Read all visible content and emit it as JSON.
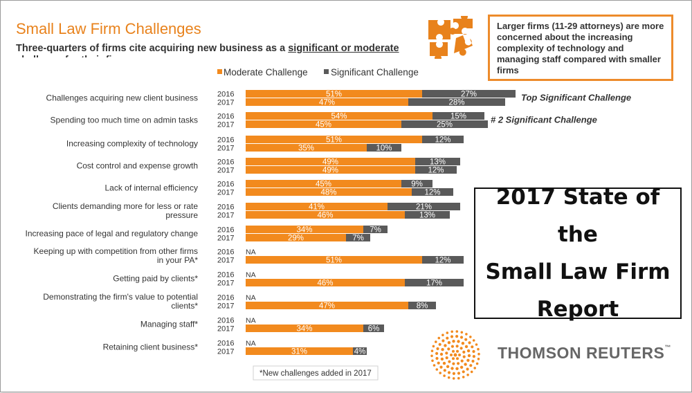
{
  "title": "Small Law Firm Challenges",
  "subtitle": {
    "part1": "Three-quarters of firms cite acquiring new business as a ",
    "underlined": "significant or moderate challenge ",
    "part2": "for their firm."
  },
  "callout": "Larger firms (11-29 attorneys) are more concerned about the increasing complexity of technology and managing staff compared with smaller firms",
  "report_title_lines": [
    "2017 State of the",
    "Small Law Firm",
    "Report"
  ],
  "brand": "THOMSON REUTERS",
  "brand_tm": "™",
  "footnote": "*New challenges added in 2017",
  "colors": {
    "moderate": "#f28a1e",
    "significant": "#5a5a5a",
    "accent": "#e8821c"
  },
  "chart_data": {
    "type": "bar",
    "orientation": "horizontal",
    "stacked": true,
    "legend": [
      "Moderate Challenge",
      "Significant Challenge"
    ],
    "legend_position": "top",
    "xlim": [
      0,
      100
    ],
    "na_label": "NA",
    "categories": [
      {
        "label": "Challenges acquiring new client business",
        "annotation": "Top Significant Challenge",
        "rows": [
          {
            "year": "2016",
            "moderate": 51,
            "significant": 27
          },
          {
            "year": "2017",
            "moderate": 47,
            "significant": 28
          }
        ]
      },
      {
        "label": "Spending too much time on admin tasks",
        "annotation": "# 2 Significant Challenge",
        "rows": [
          {
            "year": "2016",
            "moderate": 54,
            "significant": 15
          },
          {
            "year": "2017",
            "moderate": 45,
            "significant": 25
          }
        ]
      },
      {
        "label": "Increasing complexity of technology",
        "rows": [
          {
            "year": "2016",
            "moderate": 51,
            "significant": 12
          },
          {
            "year": "2017",
            "moderate": 35,
            "significant": 10
          }
        ]
      },
      {
        "label": "Cost control and expense growth",
        "rows": [
          {
            "year": "2016",
            "moderate": 49,
            "significant": 13
          },
          {
            "year": "2017",
            "moderate": 49,
            "significant": 12
          }
        ]
      },
      {
        "label": "Lack of internal efficiency",
        "rows": [
          {
            "year": "2016",
            "moderate": 45,
            "significant": 9
          },
          {
            "year": "2017",
            "moderate": 48,
            "significant": 12
          }
        ]
      },
      {
        "label": "Clients demanding more for less or rate pressure",
        "rows": [
          {
            "year": "2016",
            "moderate": 41,
            "significant": 21
          },
          {
            "year": "2017",
            "moderate": 46,
            "significant": 13
          }
        ]
      },
      {
        "label": "Increasing pace of legal and regulatory change",
        "rows": [
          {
            "year": "2016",
            "moderate": 34,
            "significant": 7
          },
          {
            "year": "2017",
            "moderate": 29,
            "significant": 7
          }
        ]
      },
      {
        "label": "Keeping up with competition from other firms in your PA*",
        "rows": [
          {
            "year": "2016",
            "moderate": null,
            "significant": null
          },
          {
            "year": "2017",
            "moderate": 51,
            "significant": 12
          }
        ]
      },
      {
        "label": "Getting paid by clients*",
        "rows": [
          {
            "year": "2016",
            "moderate": null,
            "significant": null
          },
          {
            "year": "2017",
            "moderate": 46,
            "significant": 17
          }
        ]
      },
      {
        "label": "Demonstrating the firm's value to potential clients*",
        "rows": [
          {
            "year": "2016",
            "moderate": null,
            "significant": null
          },
          {
            "year": "2017",
            "moderate": 47,
            "significant": 8
          }
        ]
      },
      {
        "label": "Managing staff*",
        "rows": [
          {
            "year": "2016",
            "moderate": null,
            "significant": null
          },
          {
            "year": "2017",
            "moderate": 34,
            "significant": 6
          }
        ]
      },
      {
        "label": "Retaining client business*",
        "rows": [
          {
            "year": "2016",
            "moderate": null,
            "significant": null
          },
          {
            "year": "2017",
            "moderate": 31,
            "significant": 4
          }
        ]
      }
    ]
  }
}
